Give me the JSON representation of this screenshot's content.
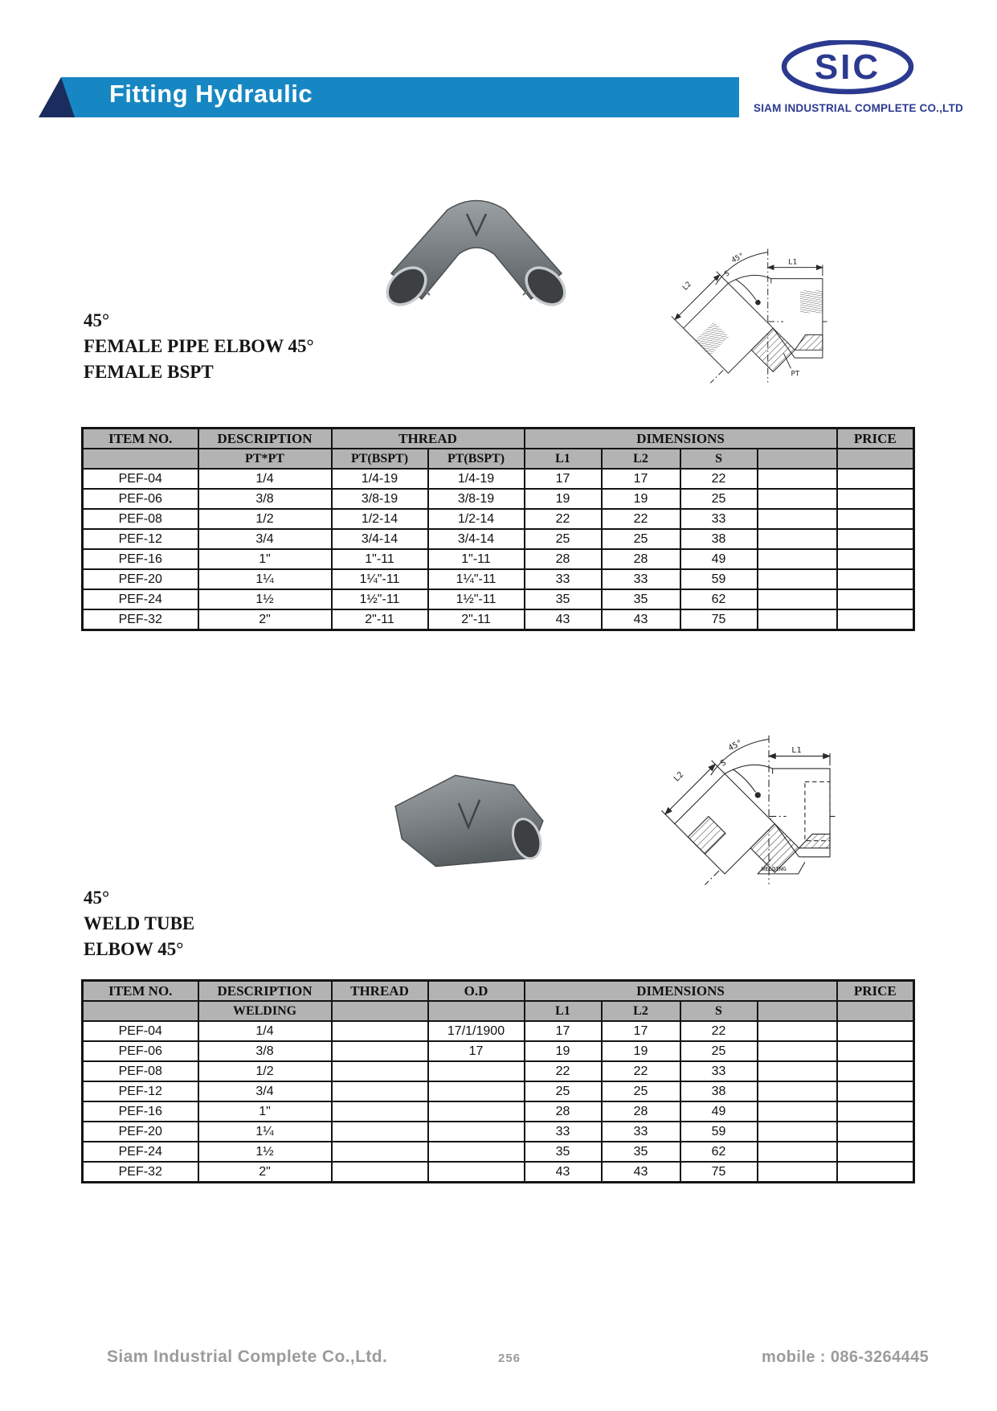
{
  "header": {
    "title": "Fitting Hydraulic",
    "bar_color": "#1787c3",
    "accent_color": "#1b2d5e",
    "logo_text": "SIC",
    "logo_company": "SIAM INDUSTRIAL COMPLETE CO.,LTD",
    "logo_color": "#2b3a90"
  },
  "section1": {
    "title_line1": "45°",
    "title_line2": "FEMALE PIPE ELBOW 45°",
    "title_line3": "FEMALE BSPT",
    "drawing": {
      "angle": "45°",
      "l1": "L1",
      "l2": "L2",
      "s": "S",
      "port": "PT"
    },
    "table": {
      "columns_row1": [
        {
          "label": "ITEM NO.",
          "span": 1
        },
        {
          "label": "DESCRIPTION",
          "span": 1
        },
        {
          "label": "THREAD",
          "span": 2
        },
        {
          "label": "DIMENSIONS",
          "span": 4
        },
        {
          "label": "PRICE",
          "span": 1
        }
      ],
      "columns_row2": [
        "",
        "PT*PT",
        "PT(BSPT)",
        "PT(BSPT)",
        "L1",
        "L2",
        "S",
        "",
        ""
      ],
      "rows": [
        [
          "PEF-04",
          "1/4",
          "1/4-19",
          "1/4-19",
          "17",
          "17",
          "22",
          "",
          ""
        ],
        [
          "PEF-06",
          "3/8",
          "3/8-19",
          "3/8-19",
          "19",
          "19",
          "25",
          "",
          ""
        ],
        [
          "PEF-08",
          "1/2",
          "1/2-14",
          "1/2-14",
          "22",
          "22",
          "33",
          "",
          ""
        ],
        [
          "PEF-12",
          "3/4",
          "3/4-14",
          "3/4-14",
          "25",
          "25",
          "38",
          "",
          ""
        ],
        [
          "PEF-16",
          "1\"",
          "1\"-11",
          "1\"-11",
          "28",
          "28",
          "49",
          "",
          ""
        ],
        [
          "PEF-20",
          "1¼",
          "1¼\"-11",
          "1¼\"-11",
          "33",
          "33",
          "59",
          "",
          ""
        ],
        [
          "PEF-24",
          "1½",
          "1½\"-11",
          "1½\"-11",
          "35",
          "35",
          "62",
          "",
          ""
        ],
        [
          "PEF-32",
          "2\"",
          "2\"-11",
          "2\"-11",
          "43",
          "43",
          "75",
          "",
          ""
        ]
      ]
    }
  },
  "section2": {
    "title_line1": "45°",
    "title_line2": "WELD TUBE",
    "title_line3": "ELBOW 45°",
    "drawing": {
      "angle": "45°",
      "l1": "L1",
      "l2": "L2",
      "s": "S",
      "port": "WELDING"
    },
    "table": {
      "columns_row1": [
        {
          "label": "ITEM NO.",
          "span": 1
        },
        {
          "label": "DESCRIPTION",
          "span": 1
        },
        {
          "label": "THREAD",
          "span": 1
        },
        {
          "label": "O.D",
          "span": 1
        },
        {
          "label": "DIMENSIONS",
          "span": 4
        },
        {
          "label": "PRICE",
          "span": 1
        }
      ],
      "columns_row2": [
        "",
        "WELDING",
        "",
        "",
        "L1",
        "L2",
        "S",
        "",
        ""
      ],
      "rows": [
        [
          "PEF-04",
          "1/4",
          "",
          "17/1/1900",
          "17",
          "17",
          "22",
          "",
          ""
        ],
        [
          "PEF-06",
          "3/8",
          "",
          "17",
          "19",
          "19",
          "25",
          "",
          ""
        ],
        [
          "PEF-08",
          "1/2",
          "",
          "",
          "22",
          "22",
          "33",
          "",
          ""
        ],
        [
          "PEF-12",
          "3/4",
          "",
          "",
          "25",
          "25",
          "38",
          "",
          ""
        ],
        [
          "PEF-16",
          "1\"",
          "",
          "",
          "28",
          "28",
          "49",
          "",
          ""
        ],
        [
          "PEF-20",
          "1¼",
          "",
          "",
          "33",
          "33",
          "59",
          "",
          ""
        ],
        [
          "PEF-24",
          "1½",
          "",
          "",
          "35",
          "35",
          "62",
          "",
          ""
        ],
        [
          "PEF-32",
          "2\"",
          "",
          "",
          "43",
          "43",
          "75",
          "",
          ""
        ]
      ]
    }
  },
  "footer": {
    "company": "Siam Industrial Complete Co.,Ltd.",
    "page": "256",
    "mobile": "mobile : 086-3264445"
  }
}
